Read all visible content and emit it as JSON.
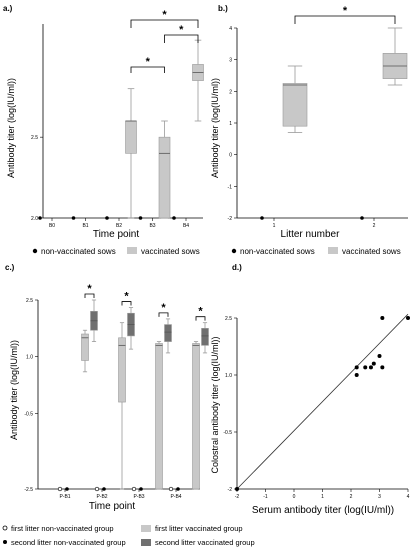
{
  "colors": {
    "light_gray": "#c8c8c8",
    "dark_gray": "#707070",
    "box_edge": "#9a9a9a",
    "axis": "#000000",
    "marker": "#000000"
  },
  "chart_data": [
    {
      "panel": "a.)",
      "type": "box",
      "xlabel": "Time point",
      "ylabel": "Antibody titer (log(IU/ml))",
      "ylim": [
        2.0,
        2.6
      ],
      "yticks": [
        2.0,
        2.5
      ],
      "y_axis_labels": [
        "2.0",
        "2.5"
      ],
      "categories": [
        "B0",
        "B1",
        "B2",
        "B3",
        "B4"
      ],
      "series": [
        {
          "name": "non-vaccinated sows",
          "kind": "point",
          "values": [
            2.0,
            2.0,
            2.0,
            2.0,
            2.0
          ]
        },
        {
          "name": "vaccinated sows",
          "kind": "box",
          "boxes": [
            null,
            null,
            {
              "whisker_low": 2.0,
              "q1": 2.4,
              "median": 2.6,
              "q3": 2.6,
              "whisker_high": 2.8
            },
            {
              "whisker_low": 2.0,
              "q1": 2.0,
              "median": 2.4,
              "q3": 2.5,
              "whisker_high": 2.6
            },
            {
              "whisker_low": 2.6,
              "q1": 2.85,
              "median": 2.9,
              "q3": 2.95,
              "whisker_high": 3.1
            }
          ]
        }
      ],
      "significance": [
        {
          "from": "B2",
          "to": "B4",
          "label": "*",
          "marker": "*"
        },
        {
          "from": "B3",
          "to": "B4",
          "label": "*",
          "marker": "*"
        },
        {
          "from": "B2",
          "to": "B3",
          "label": "*",
          "marker": "*"
        }
      ],
      "legend": [
        "non-vaccinated sows",
        "vaccinated sows"
      ]
    },
    {
      "panel": "b.)",
      "type": "box",
      "xlabel": "Litter number",
      "ylabel": "Antibody titer (log(IU/ml))",
      "ylim": [
        -2,
        4
      ],
      "yticks": [
        -2,
        -1,
        0,
        1,
        2,
        3,
        4
      ],
      "y_axis_labels": [
        "-2",
        "-1",
        "0",
        "1",
        "2",
        "3",
        "4"
      ],
      "categories": [
        "1",
        "2"
      ],
      "series": [
        {
          "name": "non-vaccinated sows",
          "kind": "point",
          "values": [
            -2,
            -2
          ]
        },
        {
          "name": "vaccinated sows",
          "kind": "box",
          "boxes": [
            {
              "whisker_low": 0.7,
              "q1": 0.9,
              "median": 2.2,
              "q3": 2.25,
              "whisker_high": 2.8
            },
            {
              "whisker_low": 2.2,
              "q1": 2.4,
              "median": 2.8,
              "q3": 3.2,
              "whisker_high": 4.0
            }
          ]
        }
      ],
      "significance": [
        {
          "from": "1",
          "to": "2",
          "label": "*",
          "marker": "*"
        }
      ],
      "legend": [
        "non-vaccinated sows",
        "vaccinated sows"
      ]
    },
    {
      "panel": "c.)",
      "type": "box",
      "xlabel": "Time point",
      "ylabel": "Antibody titer (log(IU/ml))",
      "ylim": [
        -2.5,
        2.5
      ],
      "yticks": [
        -2.5,
        -0.5,
        1.0,
        2.5
      ],
      "y_axis_labels": [
        "-2.5",
        "-0.5",
        "1.0",
        "2.5"
      ],
      "categories": [
        "P-B1",
        "P-B2",
        "P-B3",
        "P-B4"
      ],
      "series": [
        {
          "name": "first litter non-vaccinated group",
          "kind": "point",
          "values": [
            -2.5,
            -2.5,
            -2.5,
            -2.5
          ]
        },
        {
          "name": "second litter non-vaccinated group",
          "kind": "point",
          "values": [
            -2.5,
            -2.5,
            -2.5,
            -2.5
          ]
        },
        {
          "name": "first litter vaccinated group",
          "kind": "box",
          "boxes": [
            {
              "whisker_low": 0.6,
              "q1": 0.9,
              "median": 1.5,
              "q3": 1.6,
              "whisker_high": 1.7
            },
            {
              "whisker_low": -2.5,
              "q1": -0.2,
              "median": 1.3,
              "q3": 1.5,
              "whisker_high": 1.9
            },
            {
              "whisker_low": -2.5,
              "q1": -2.5,
              "median": 1.3,
              "q3": 1.35,
              "whisker_high": 1.4
            },
            {
              "whisker_low": -2.5,
              "q1": -2.5,
              "median": 1.3,
              "q3": 1.35,
              "whisker_high": 1.4
            }
          ]
        },
        {
          "name": "second litter vaccinated group",
          "kind": "box",
          "boxes": [
            {
              "whisker_low": 1.4,
              "q1": 1.7,
              "median": 1.95,
              "q3": 2.2,
              "whisker_high": 2.5
            },
            {
              "whisker_low": 1.2,
              "q1": 1.55,
              "median": 1.85,
              "q3": 2.15,
              "whisker_high": 2.3
            },
            {
              "whisker_low": 1.1,
              "q1": 1.4,
              "median": 1.65,
              "q3": 1.85,
              "whisker_high": 2.0
            },
            {
              "whisker_low": 1.1,
              "q1": 1.3,
              "median": 1.55,
              "q3": 1.75,
              "whisker_high": 1.9
            }
          ]
        }
      ],
      "significance": [
        {
          "from": "P-B1",
          "label": "*",
          "marker": "*"
        },
        {
          "from": "P-B2",
          "label": "*",
          "marker": "*"
        },
        {
          "from": "P-B3",
          "label": "*",
          "marker": "*"
        },
        {
          "from": "P-B4",
          "label": "*",
          "marker": "*"
        }
      ],
      "legend": [
        "first litter non-vaccinated group",
        "first litter vaccinated group",
        "second litter non-vaccinated group",
        "second litter vaccinated group"
      ]
    },
    {
      "panel": "d.)",
      "type": "scatter",
      "xlabel": "Serum antibody titer (log(IU/ml))",
      "ylabel": "Colostral antibody titer (log(IU/ml))",
      "xlim": [
        -2,
        4
      ],
      "ylim": [
        -2,
        2.5
      ],
      "xticks": [
        -2,
        -1,
        0,
        1,
        2,
        3,
        4
      ],
      "x_axis_labels": [
        "-2",
        "-1",
        "0",
        "1",
        "2",
        "3",
        "4"
      ],
      "yticks": [
        -2,
        -0.5,
        1.0,
        2.5
      ],
      "y_axis_labels": [
        "-2",
        "-0.5",
        "1.0",
        "2.5"
      ],
      "points": [
        {
          "x": -2,
          "y": -2
        },
        {
          "x": 2.2,
          "y": 1.2
        },
        {
          "x": 2.2,
          "y": 1.0
        },
        {
          "x": 2.5,
          "y": 1.2
        },
        {
          "x": 2.7,
          "y": 1.2
        },
        {
          "x": 2.8,
          "y": 1.3
        },
        {
          "x": 3.0,
          "y": 1.5
        },
        {
          "x": 3.1,
          "y": 1.2
        },
        {
          "x": 3.1,
          "y": 2.5
        },
        {
          "x": 4.0,
          "y": 2.5
        }
      ],
      "fit_line": {
        "x1": -2,
        "y1": -2,
        "x2": 4,
        "y2": 2.6
      }
    }
  ]
}
